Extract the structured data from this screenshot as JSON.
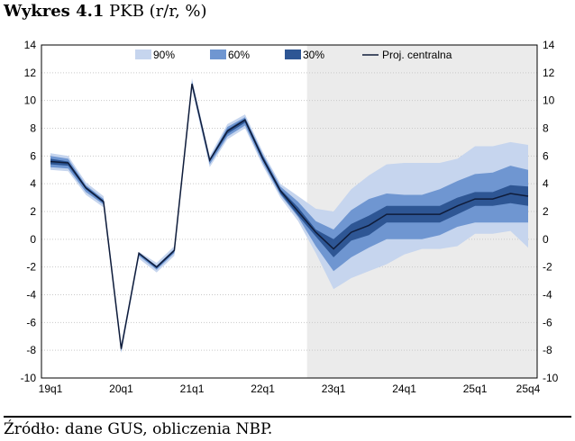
{
  "title": {
    "bold": "Wykres 4.1",
    "rest": "PKB (r/r, %)"
  },
  "source": "Źródło: dane GUS, obliczenia NBP.",
  "colors": {
    "band90": "#c6d5ee",
    "band60": "#6f96d1",
    "band30": "#2e5694",
    "central": "#0f1c3a",
    "projection_bg": "#ebebeb",
    "grid": "#c9c9c9"
  },
  "chart_data": {
    "type": "area",
    "x": [
      "19q1",
      "19q2",
      "19q3",
      "19q4",
      "20q1",
      "20q2",
      "20q3",
      "20q4",
      "21q1",
      "21q2",
      "21q3",
      "21q4",
      "22q1",
      "22q2",
      "22q3",
      "22q4",
      "23q1",
      "23q2",
      "23q3",
      "23q4",
      "24q1",
      "24q2",
      "24q3",
      "24q4",
      "25q1",
      "25q2",
      "25q3",
      "25q4"
    ],
    "x_tick_labels": [
      "19q1",
      "20q1",
      "21q1",
      "22q1",
      "23q1",
      "24q1",
      "25q1",
      "25q4"
    ],
    "ylim": [
      -10,
      14
    ],
    "y_ticks": [
      -10,
      -8,
      -6,
      -4,
      -2,
      0,
      2,
      4,
      6,
      8,
      10,
      12,
      14
    ],
    "grid": true,
    "legend_position": "top",
    "projection_start": "22q4",
    "series": [
      {
        "name": "90%",
        "lower": [
          5.0,
          4.9,
          3.2,
          2.3,
          -8.2,
          -1.4,
          -2.4,
          -1.2,
          10.8,
          5.2,
          7.2,
          8.0,
          5.3,
          3.0,
          1.3,
          -1.0,
          -3.6,
          -2.8,
          -2.3,
          -1.8,
          -1.1,
          -0.7,
          -0.7,
          -0.5,
          0.4,
          0.4,
          0.6,
          -0.6
        ],
        "upper": [
          6.2,
          6.0,
          4.1,
          3.1,
          -7.5,
          -0.9,
          -1.7,
          -0.5,
          11.6,
          6.0,
          8.3,
          9.0,
          6.3,
          4.0,
          3.1,
          2.2,
          2.0,
          3.6,
          4.6,
          5.4,
          5.5,
          5.5,
          5.5,
          5.8,
          6.7,
          6.7,
          7.0,
          6.8
        ]
      },
      {
        "name": "60%",
        "lower": [
          5.2,
          5.1,
          3.4,
          2.5,
          -8.1,
          -1.2,
          -2.2,
          -1.0,
          11.0,
          5.4,
          7.4,
          8.2,
          5.5,
          3.2,
          1.6,
          -0.5,
          -2.3,
          -1.3,
          -0.6,
          0.0,
          0.0,
          0.0,
          0.3,
          0.9,
          1.2,
          1.2,
          1.2,
          1.2
        ],
        "upper": [
          6.0,
          5.8,
          3.9,
          2.9,
          -7.7,
          -1.0,
          -1.9,
          -0.7,
          11.4,
          5.8,
          8.1,
          8.8,
          6.1,
          3.8,
          2.7,
          1.3,
          0.7,
          2.1,
          2.9,
          3.3,
          3.2,
          3.2,
          3.6,
          4.2,
          4.7,
          4.8,
          5.3,
          5.0
        ]
      },
      {
        "name": "30%",
        "lower": [
          5.4,
          5.3,
          3.6,
          2.6,
          -8.0,
          -1.1,
          -2.1,
          -0.9,
          11.1,
          5.6,
          7.6,
          8.4,
          5.7,
          3.3,
          1.7,
          0.2,
          -1.3,
          -0.1,
          0.3,
          1.2,
          1.2,
          1.2,
          1.2,
          1.8,
          2.4,
          2.4,
          2.6,
          2.4
        ],
        "upper": [
          5.8,
          5.6,
          3.8,
          2.8,
          -7.8,
          -1.0,
          -2.0,
          -0.8,
          11.3,
          5.8,
          7.9,
          8.7,
          6.0,
          3.6,
          2.3,
          0.7,
          0.0,
          1.1,
          1.7,
          2.4,
          2.4,
          2.4,
          2.4,
          3.0,
          3.4,
          3.4,
          3.9,
          3.8
        ]
      },
      {
        "name": "Proj. centralna",
        "values": [
          5.6,
          5.5,
          3.7,
          2.7,
          -7.9,
          -1.0,
          -2.0,
          -0.8,
          11.2,
          5.7,
          7.8,
          8.6,
          5.8,
          3.5,
          2.0,
          0.5,
          -0.7,
          0.5,
          1.0,
          1.8,
          1.8,
          1.8,
          1.8,
          2.4,
          2.9,
          2.9,
          3.3,
          3.1
        ]
      }
    ]
  }
}
